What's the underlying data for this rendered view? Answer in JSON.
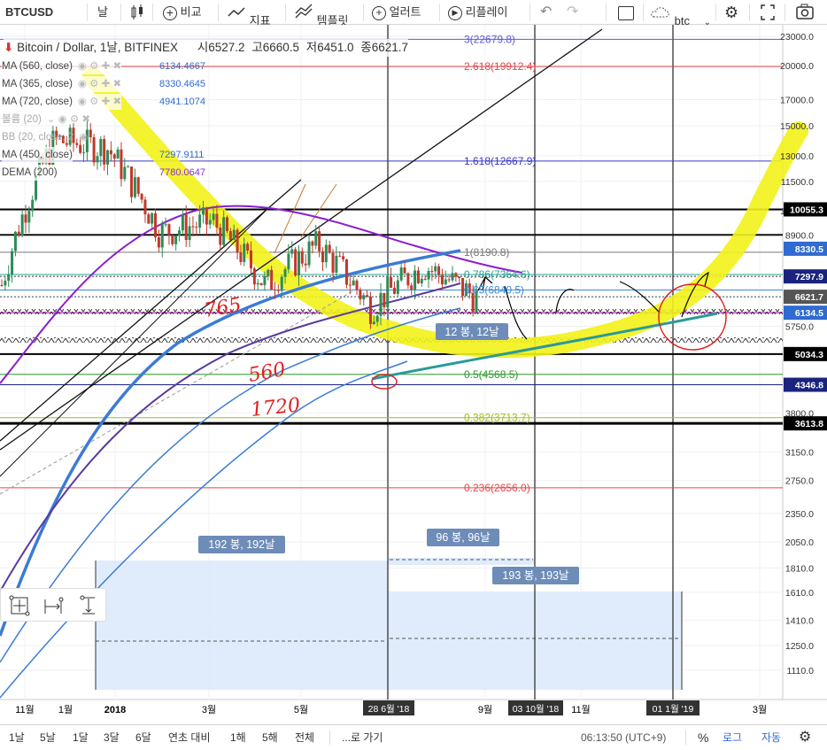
{
  "toolbar": {
    "symbol": "BTCUSD",
    "interval": "날",
    "compare": "비교",
    "indicators": "지표",
    "templates": "템플릿",
    "alert": "얼러트",
    "replay": "리플레이",
    "search_value": "btc"
  },
  "header": {
    "title": "Bitcoin / Dollar, 1날, BITFINEX",
    "open_label": "시",
    "open": "6527.2",
    "high_label": "고",
    "high": "6660.5",
    "low_label": "저",
    "low": "6451.0",
    "close_label": "종",
    "close": "6621.7"
  },
  "indicators": [
    {
      "name": "MA (560, close)",
      "value": "6134.4667",
      "color": "#2f6bd0"
    },
    {
      "name": "MA (365, close)",
      "value": "8330.4645",
      "color": "#2f6bd0"
    },
    {
      "name": "MA (720, close)",
      "value": "4941.1074",
      "color": "#2f6bd0"
    },
    {
      "name": "볼륨 (20)",
      "value": "",
      "color": "#999999"
    },
    {
      "name": "BB (20, close, 2",
      "value": "",
      "color": "#999999"
    },
    {
      "name": "MA (450, close)",
      "value": "7297.9111",
      "color": "#2f6bd0"
    },
    {
      "name": "DEMA (200)",
      "value": "7780.0647",
      "color": "#8a2be2"
    }
  ],
  "fib_labels": [
    {
      "text": "3(22679.8)",
      "price": 22679.8,
      "color": "#5b5bd6"
    },
    {
      "text": "2.618(19912.4)",
      "price": 19912.4,
      "color": "#e04848"
    },
    {
      "text": "1.618(12667.9)",
      "price": 12667.9,
      "color": "#3a3ac0"
    },
    {
      "text": "1(8190.8)",
      "price": 8190.8,
      "color": "#777777"
    },
    {
      "text": "0.786(7364.6)",
      "price": 7364.6,
      "color": "#2aa198"
    },
    {
      "text": "0.65(6840.5)",
      "price": 6840.5,
      "color": "#3a8ad8"
    },
    {
      "text": "0.5(4568.5)",
      "price": 4568.5,
      "color": "#2a9a2a"
    },
    {
      "text": "0.382(3713.7)",
      "price": 3713.7,
      "color": "#a0c020"
    },
    {
      "text": "0.236(2656.0)",
      "price": 2656.0,
      "color": "#e04848"
    }
  ],
  "price_axis": {
    "ticks": [
      "23000.0",
      "20000.0",
      "17000.0",
      "15000.0",
      "13000.0",
      "11500.0",
      "10000.0",
      "8900.0",
      "6621.7",
      "5750.0",
      "4350.0",
      "3800.0",
      "3150.0",
      "2750.0",
      "2350.0",
      "2050.0",
      "1810.0",
      "1610.0",
      "1410.0",
      "1250.0",
      "1110.0"
    ],
    "tick_prices": [
      23000,
      20000,
      17000,
      15000,
      13000,
      11500,
      10000,
      8900,
      6621.7,
      5750,
      4350,
      3800,
      3150,
      2750,
      2350,
      2050,
      1810,
      1610,
      1410,
      1250,
      1110
    ],
    "badges": [
      {
        "text": "10055.3",
        "price": 10055.3,
        "bg": "#000000",
        "fg": "#ffffff"
      },
      {
        "text": "8330.5",
        "price": 8330.5,
        "bg": "#2f6bd0",
        "fg": "#ffffff"
      },
      {
        "text": "7297.9",
        "price": 7297.9,
        "bg": "#1a237e",
        "fg": "#ffffff"
      },
      {
        "text": "6621.7",
        "price": 6621.7,
        "bg": "#555555",
        "fg": "#ffffff"
      },
      {
        "text": "6134.5",
        "price": 6134.5,
        "bg": "#2f6bd0",
        "fg": "#ffffff"
      },
      {
        "text": "5034.3",
        "price": 5034.3,
        "bg": "#000000",
        "fg": "#ffffff"
      },
      {
        "text": "4346.8",
        "price": 4346.8,
        "bg": "#1a237e",
        "fg": "#ffffff"
      },
      {
        "text": "3613.8",
        "price": 3613.8,
        "bg": "#000000",
        "fg": "#ffffff"
      }
    ]
  },
  "time_axis": {
    "labels": [
      "11월",
      "1월",
      "2018",
      "3월",
      "5월",
      "9월",
      "11월",
      "3월"
    ],
    "highlighted": [
      "28 6월 '18",
      "03 10월 '18",
      "01 1월 '19"
    ]
  },
  "range_labels": [
    {
      "text": "192 봉, 192날"
    },
    {
      "text": "96 봉, 96날"
    },
    {
      "text": "193 봉, 193날"
    },
    {
      "text": "12 봉, 12날"
    }
  ],
  "handwriting": [
    "765",
    "560",
    "1720"
  ],
  "bottombar": {
    "ranges": [
      "1날",
      "5날",
      "1달",
      "3달",
      "6달",
      "연초 대비",
      "1해",
      "5해",
      "전체"
    ],
    "goto": "...로 가기",
    "clock": "06:13:50 (UTC+9)",
    "percent": "%",
    "log": "로그",
    "auto": "자동"
  },
  "chart_data": {
    "type": "line",
    "title": "Bitcoin / Dollar, 1날, BITFINEX",
    "xlabel": "",
    "ylabel": "",
    "scale": "log",
    "ylim": [
      1050,
      23500
    ],
    "x": [
      "2017-11",
      "2017-12",
      "2018-01",
      "2018-02",
      "2018-03",
      "2018-04",
      "2018-05",
      "2018-06",
      "2018-07",
      "2018-08"
    ],
    "series": [
      {
        "name": "BTCUSD",
        "values": [
          7000,
          14000,
          13500,
          9000,
          9500,
          7000,
          8500,
          6300,
          7700,
          6600
        ]
      }
    ],
    "last_price": 6621.7,
    "grid": true
  }
}
